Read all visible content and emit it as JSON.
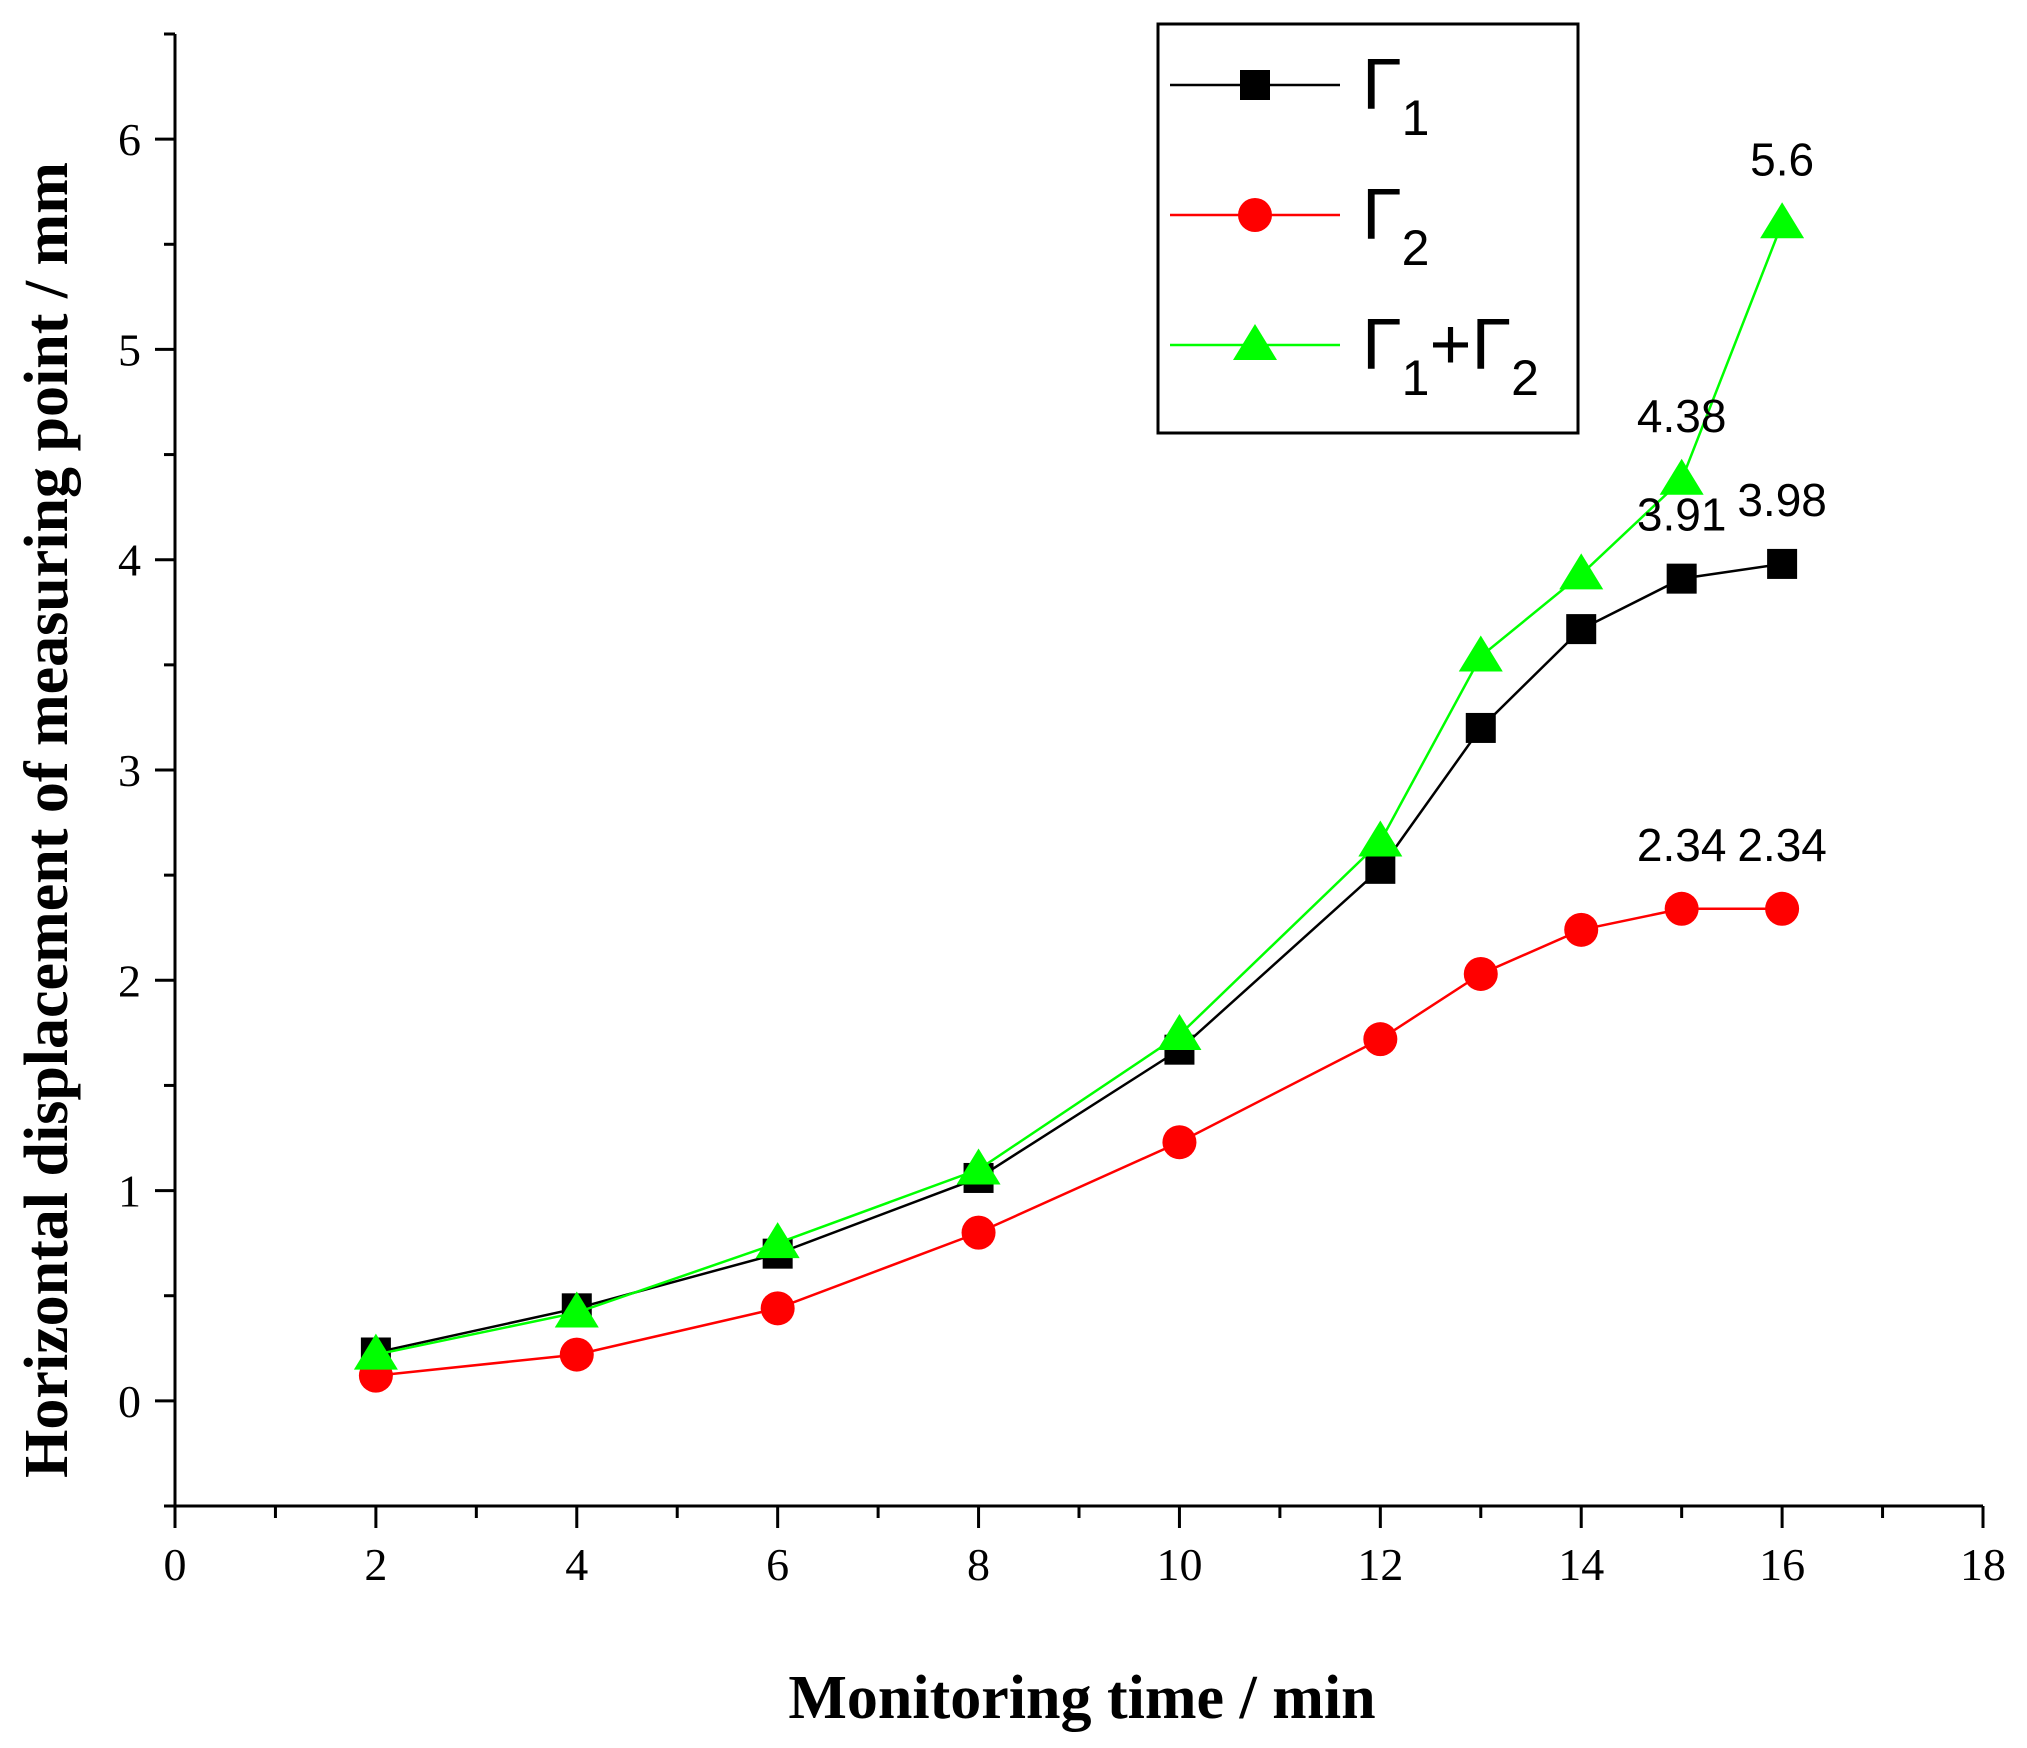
{
  "chart_data": {
    "type": "line",
    "title": "",
    "xlabel": "Monitoring time / min",
    "ylabel": "Horizontal displacement of measuring point / mm",
    "xlim": [
      0,
      18
    ],
    "ylim": [
      -0.5,
      6.5
    ],
    "xticks": [
      0,
      2,
      4,
      6,
      8,
      10,
      12,
      14,
      16,
      18
    ],
    "yticks": [
      0,
      1,
      2,
      3,
      4,
      5,
      6
    ],
    "grid": false,
    "legend_position": "top-right",
    "series": [
      {
        "name": "Γ1",
        "legend_main": "Γ",
        "legend_sub": "1",
        "color": "#000000",
        "marker": "square",
        "x": [
          2,
          4,
          6,
          8,
          10,
          12,
          13,
          14,
          15,
          16
        ],
        "y": [
          0.23,
          0.44,
          0.7,
          1.06,
          1.67,
          2.53,
          3.2,
          3.67,
          3.91,
          3.98
        ]
      },
      {
        "name": "Γ2",
        "legend_main": "Γ",
        "legend_sub": "2",
        "color": "#ff0000",
        "marker": "circle",
        "x": [
          2,
          4,
          6,
          8,
          10,
          12,
          13,
          14,
          15,
          16
        ],
        "y": [
          0.12,
          0.22,
          0.44,
          0.8,
          1.23,
          1.72,
          2.03,
          2.24,
          2.34,
          2.34
        ]
      },
      {
        "name": "Γ1+Γ2",
        "legend_main": "Γ",
        "legend_sub": "1",
        "legend_main2": "+Γ",
        "legend_sub2": "2",
        "color": "#00ff00",
        "marker": "triangle",
        "x": [
          2,
          4,
          6,
          8,
          10,
          12,
          13,
          14,
          15,
          16
        ],
        "y": [
          0.22,
          0.42,
          0.75,
          1.1,
          1.74,
          2.66,
          3.54,
          3.93,
          4.38,
          5.6
        ]
      }
    ],
    "annotations": [
      {
        "text": "5.6",
        "x": 16,
        "y": 5.6
      },
      {
        "text": "4.38",
        "x": 15,
        "y": 4.38
      },
      {
        "text": "3.91",
        "x": 15,
        "y": 3.91
      },
      {
        "text": "3.98",
        "x": 16,
        "y": 3.98
      },
      {
        "text": "2.34",
        "x": 15,
        "y": 2.34
      },
      {
        "text": "2.34",
        "x": 16,
        "y": 2.34
      }
    ]
  }
}
